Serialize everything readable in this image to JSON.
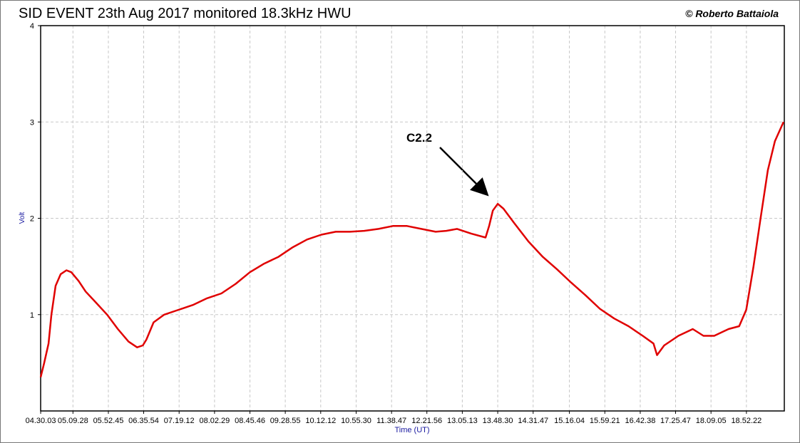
{
  "chart_data": {
    "type": "line",
    "title": "SID EVENT 23th Aug 2017  monitored 18.3kHz HWU",
    "credit": "© Roberto Battaiola",
    "x_label": "Time (UT)",
    "y_label": "Volt",
    "annotations": [
      {
        "text": "C2.2"
      }
    ],
    "grid": true,
    "xlim": [
      16200,
      70720
    ],
    "ylim": [
      0,
      4
    ],
    "yticks": [
      1,
      2,
      3,
      4
    ],
    "xticks": [
      {
        "value": 16203,
        "label": "04.30.03"
      },
      {
        "value": 18568,
        "label": "05.09.28"
      },
      {
        "value": 21165,
        "label": "05.52.45"
      },
      {
        "value": 23754,
        "label": "06.35.54"
      },
      {
        "value": 26352,
        "label": "07.19.12"
      },
      {
        "value": 28949,
        "label": "08.02.29"
      },
      {
        "value": 31546,
        "label": "08.45.46"
      },
      {
        "value": 34135,
        "label": "09.28.55"
      },
      {
        "value": 36732,
        "label": "10.12.12"
      },
      {
        "value": 39330,
        "label": "10.55.30"
      },
      {
        "value": 41927,
        "label": "11.38.47"
      },
      {
        "value": 44516,
        "label": "12.21.56"
      },
      {
        "value": 47113,
        "label": "13.05.13"
      },
      {
        "value": 49710,
        "label": "13.48.30"
      },
      {
        "value": 52307,
        "label": "14.31.47"
      },
      {
        "value": 54964,
        "label": "15.16.04"
      },
      {
        "value": 57561,
        "label": "15.59.21"
      },
      {
        "value": 60158,
        "label": "16.42.38"
      },
      {
        "value": 62747,
        "label": "17.25.47"
      },
      {
        "value": 65345,
        "label": "18.09.05"
      },
      {
        "value": 67942,
        "label": "18.52.22"
      }
    ],
    "series": [
      {
        "color": "#e00000",
        "x": [
          16200,
          16460,
          16780,
          16990,
          17300,
          17670,
          18090,
          18450,
          18980,
          19500,
          20290,
          21070,
          21860,
          22640,
          23270,
          23690,
          23950,
          24480,
          25260,
          26310,
          27360,
          28400,
          29450,
          30500,
          31540,
          32590,
          33640,
          34690,
          35730,
          36780,
          37830,
          38870,
          39920,
          40970,
          42020,
          43060,
          44110,
          45160,
          45940,
          46730,
          47780,
          48820,
          49080,
          49350,
          49710,
          50130,
          50920,
          51960,
          53010,
          54060,
          55110,
          56150,
          57200,
          58250,
          59300,
          60340,
          61130,
          61390,
          61910,
          62960,
          64010,
          64790,
          65580,
          66630,
          67410,
          67930,
          68460,
          68980,
          69510,
          70030,
          70660
        ],
        "values": [
          0.35,
          0.5,
          0.7,
          1.0,
          1.3,
          1.42,
          1.46,
          1.44,
          1.35,
          1.24,
          1.12,
          1.0,
          0.85,
          0.72,
          0.66,
          0.68,
          0.74,
          0.92,
          1.0,
          1.05,
          1.1,
          1.17,
          1.22,
          1.32,
          1.44,
          1.53,
          1.6,
          1.7,
          1.78,
          1.83,
          1.86,
          1.86,
          1.87,
          1.89,
          1.92,
          1.92,
          1.89,
          1.86,
          1.87,
          1.89,
          1.84,
          1.8,
          1.92,
          2.08,
          2.15,
          2.1,
          1.95,
          1.76,
          1.6,
          1.47,
          1.33,
          1.2,
          1.06,
          0.96,
          0.88,
          0.78,
          0.7,
          0.58,
          0.68,
          0.78,
          0.85,
          0.78,
          0.78,
          0.85,
          0.88,
          1.05,
          1.5,
          2.0,
          2.5,
          2.8,
          3.0
        ]
      }
    ]
  }
}
